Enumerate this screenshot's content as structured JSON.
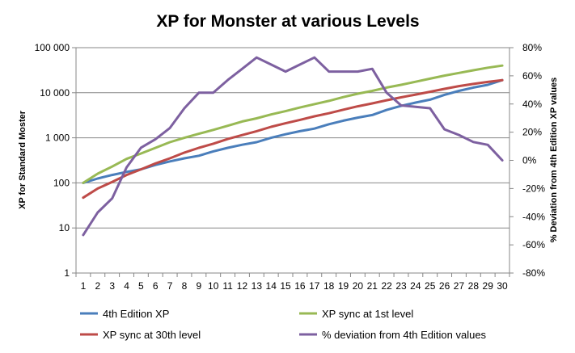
{
  "chart_data": {
    "type": "line",
    "title": "XP for Monster at various Levels",
    "ylabel": "XP for Standard Moster",
    "y2label": "% Deviation from 4th Edition XP values",
    "xlabel": "",
    "x": [
      1,
      2,
      3,
      4,
      5,
      6,
      7,
      8,
      9,
      10,
      11,
      12,
      13,
      14,
      15,
      16,
      17,
      18,
      19,
      20,
      21,
      22,
      23,
      24,
      25,
      26,
      27,
      28,
      29,
      30
    ],
    "yscale": "log",
    "ylim": [
      1,
      100000
    ],
    "yticks": [
      1,
      10,
      100,
      1000,
      10000,
      100000
    ],
    "ytick_labels": [
      "1",
      "10",
      "100",
      "1 000",
      "10 000",
      "100 000"
    ],
    "y2lim": [
      -80,
      80
    ],
    "y2ticks": [
      -80,
      -60,
      -40,
      -20,
      0,
      20,
      40,
      60,
      80
    ],
    "y2tick_labels": [
      "-80%",
      "-60%",
      "-40%",
      "-20%",
      "0%",
      "20%",
      "40%",
      "60%",
      "80%"
    ],
    "grid": true,
    "legend_position": "bottom",
    "series": [
      {
        "name": "4th Edition XP",
        "axis": "left",
        "color": "#4a7ebb",
        "values": [
          100,
          125,
          150,
          175,
          200,
          250,
          300,
          350,
          400,
          500,
          600,
          700,
          800,
          1000,
          1200,
          1400,
          1600,
          2000,
          2400,
          2800,
          3200,
          4150,
          5100,
          6050,
          7000,
          9000,
          11000,
          13000,
          15000,
          19000
        ]
      },
      {
        "name": "XP sync at 1st level",
        "axis": "left",
        "color": "#98b954",
        "values": [
          100,
          160,
          230,
          340,
          450,
          600,
          800,
          1000,
          1230,
          1500,
          1850,
          2300,
          2700,
          3300,
          3900,
          4700,
          5600,
          6600,
          8000,
          9500,
          11000,
          13000,
          15000,
          17500,
          20500,
          24000,
          27500,
          31500,
          36000,
          40000
        ]
      },
      {
        "name": "XP sync at 30th level",
        "axis": "left",
        "color": "#be4b48",
        "values": [
          47,
          75,
          105,
          150,
          200,
          270,
          350,
          470,
          600,
          740,
          940,
          1150,
          1400,
          1750,
          2100,
          2500,
          3000,
          3500,
          4200,
          5000,
          5800,
          6800,
          7900,
          9100,
          10500,
          12200,
          14000,
          15700,
          17400,
          19000
        ]
      },
      {
        "name": "% deviation from 4th Edition values",
        "axis": "right",
        "color": "#7d60a0",
        "values": [
          -53,
          -37,
          -27,
          -5,
          9,
          15,
          23,
          37,
          48,
          48,
          57,
          65,
          73,
          68,
          63,
          68,
          73,
          63,
          63,
          63,
          65,
          48,
          39,
          38,
          37,
          22,
          18,
          13,
          11,
          0
        ]
      }
    ]
  }
}
